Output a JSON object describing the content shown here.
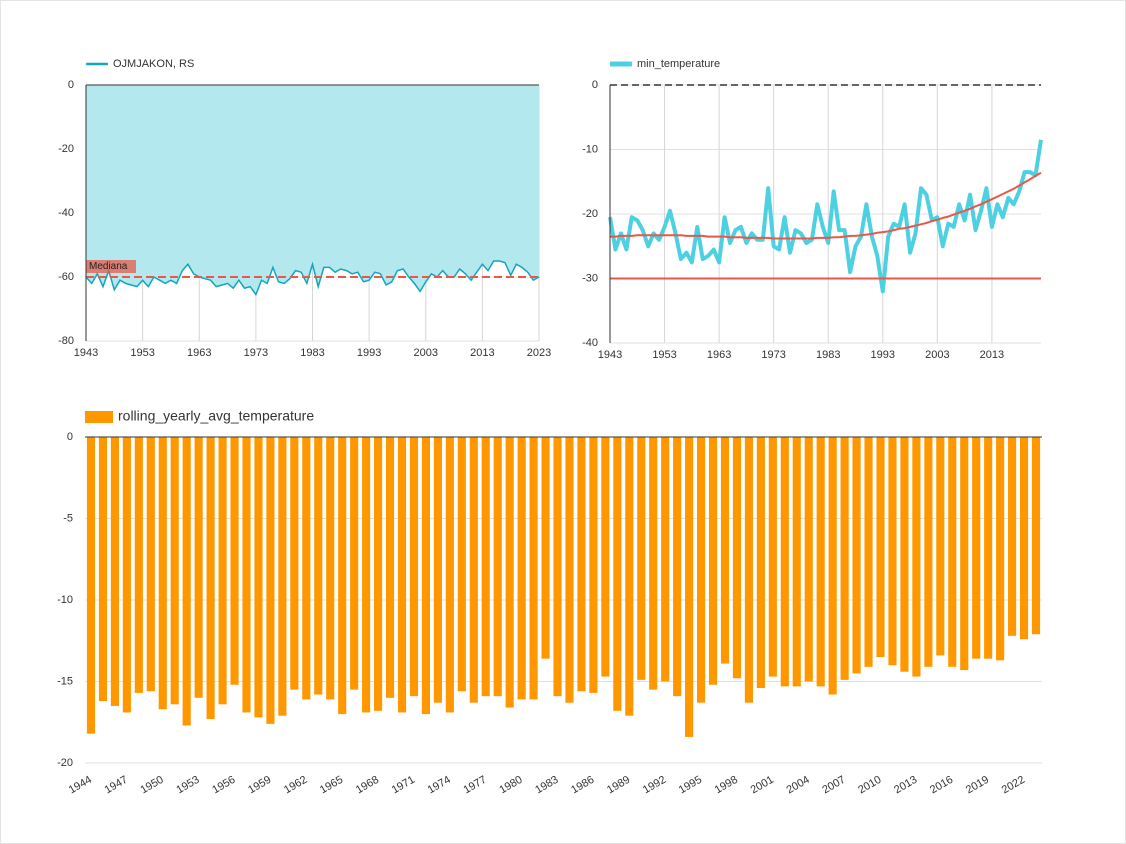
{
  "chart_data": [
    {
      "type": "area",
      "x": [
        1943,
        1944,
        1945,
        1946,
        1947,
        1948,
        1949,
        1950,
        1951,
        1952,
        1953,
        1954,
        1955,
        1956,
        1957,
        1958,
        1959,
        1960,
        1961,
        1962,
        1963,
        1964,
        1965,
        1966,
        1967,
        1968,
        1969,
        1970,
        1971,
        1972,
        1973,
        1974,
        1975,
        1976,
        1977,
        1978,
        1979,
        1980,
        1981,
        1982,
        1983,
        1984,
        1985,
        1986,
        1987,
        1988,
        1989,
        1990,
        1991,
        1992,
        1993,
        1994,
        1995,
        1996,
        1997,
        1998,
        1999,
        2000,
        2001,
        2002,
        2003,
        2004,
        2005,
        2006,
        2007,
        2008,
        2009,
        2010,
        2011,
        2012,
        2013,
        2014,
        2015,
        2016,
        2017,
        2018,
        2019,
        2020,
        2021,
        2022,
        2023
      ],
      "series": [
        {
          "name": "OJMJAKON, RS",
          "color": "#12a5c0",
          "area_color": "#b3e9ee",
          "values": [
            -60,
            -62,
            -59,
            -63,
            -58,
            -64,
            -61,
            -62,
            -62.5,
            -63,
            -61,
            -63,
            -60,
            -61,
            -62,
            -61,
            -62,
            -58,
            -56,
            -59,
            -60,
            -60.5,
            -61,
            -63,
            -62.5,
            -62,
            -63.5,
            -61,
            -63.5,
            -63,
            -65.5,
            -61,
            -62,
            -57,
            -61.5,
            -62,
            -60.5,
            -58,
            -58.5,
            -62,
            -56,
            -63,
            -57,
            -57,
            -58.5,
            -57.5,
            -58,
            -59,
            -58.5,
            -61.5,
            -61,
            -58.5,
            -59,
            -62.5,
            -61.5,
            -58,
            -57.5,
            -60,
            -62,
            -64.5,
            -61.5,
            -59,
            -60,
            -58,
            -60,
            -60,
            -57.5,
            -59,
            -61,
            -58.5,
            -56,
            -58,
            -55,
            -55,
            -55.5,
            -59.5,
            -56,
            -57,
            -58.5,
            -61,
            -60
          ]
        }
      ],
      "reference_lines": [
        {
          "value": -60,
          "label": "Mediana",
          "color": "#e8584a"
        }
      ],
      "xlim": [
        1943,
        2023
      ],
      "xticks": [
        1943,
        1953,
        1963,
        1973,
        1983,
        1993,
        2003,
        2013,
        2023
      ],
      "ylim": [
        -80,
        0
      ],
      "yticks": [
        -80,
        -60,
        -40,
        -20,
        0
      ],
      "grid": true
    },
    {
      "type": "line",
      "x": [
        1943,
        1944,
        1945,
        1946,
        1947,
        1948,
        1949,
        1950,
        1951,
        1952,
        1953,
        1954,
        1955,
        1956,
        1957,
        1958,
        1959,
        1960,
        1961,
        1962,
        1963,
        1964,
        1965,
        1966,
        1967,
        1968,
        1969,
        1970,
        1971,
        1972,
        1973,
        1974,
        1975,
        1976,
        1977,
        1978,
        1979,
        1980,
        1981,
        1982,
        1983,
        1984,
        1985,
        1986,
        1987,
        1988,
        1989,
        1990,
        1991,
        1992,
        1993,
        1994,
        1995,
        1996,
        1997,
        1998,
        1999,
        2000,
        2001,
        2002,
        2003,
        2004,
        2005,
        2006,
        2007,
        2008,
        2009,
        2010,
        2011,
        2012,
        2013,
        2014,
        2015,
        2016,
        2017,
        2018,
        2019,
        2020,
        2021,
        2022
      ],
      "series": [
        {
          "name": "min_temperature",
          "color": "#4dd0e1",
          "values": [
            -20.5,
            -25.5,
            -23,
            -25.5,
            -20.5,
            -21,
            -22.5,
            -25,
            -23,
            -24,
            -22,
            -19.5,
            -23,
            -27,
            -26,
            -27.5,
            -22,
            -27,
            -26.5,
            -25.5,
            -27.5,
            -20.5,
            -24.5,
            -22.5,
            -22,
            -24.5,
            -23,
            -24,
            -24,
            -16,
            -25,
            -25.5,
            -20.5,
            -26,
            -22.5,
            -23,
            -24.5,
            -24,
            -18.5,
            -22,
            -24.5,
            -16.5,
            -22.5,
            -22.5,
            -29,
            -25,
            -23.5,
            -18.5,
            -23.5,
            -26.5,
            -32,
            -23.5,
            -21.5,
            -22,
            -18.5,
            -26,
            -23,
            -16,
            -17,
            -21,
            -20.5,
            -25,
            -21.5,
            -22,
            -18.5,
            -21,
            -17,
            -22.5,
            -19.5,
            -16,
            -22,
            -18.5,
            -20.5,
            -17.5,
            -18.5,
            -16.5,
            -13.5,
            -13.5,
            -14,
            -8.5
          ]
        },
        {
          "color": "#e8584a",
          "values": [
            -23.5,
            -23.5,
            -23.4,
            -23.4,
            -23.4,
            -23.3,
            -23.3,
            -23.3,
            -23.3,
            -23.3,
            -23.3,
            -23.3,
            -23.3,
            -23.3,
            -23.4,
            -23.4,
            -23.4,
            -23.4,
            -23.5,
            -23.5,
            -23.5,
            -23.5,
            -23.6,
            -23.6,
            -23.6,
            -23.7,
            -23.7,
            -23.7,
            -23.7,
            -23.7,
            -23.8,
            -23.8,
            -23.8,
            -23.8,
            -23.8,
            -23.8,
            -23.8,
            -23.8,
            -23.7,
            -23.7,
            -23.7,
            -23.6,
            -23.6,
            -23.5,
            -23.4,
            -23.4,
            -23.3,
            -23.2,
            -23.1,
            -22.9,
            -22.8,
            -22.7,
            -22.5,
            -22.3,
            -22.2,
            -22.0,
            -21.8,
            -21.6,
            -21.4,
            -21.1,
            -20.9,
            -20.6,
            -20.4,
            -20.1,
            -19.8,
            -19.5,
            -19.2,
            -18.8,
            -18.5,
            -18.1,
            -17.7,
            -17.3,
            -16.9,
            -16.5,
            -16.1,
            -15.6,
            -15.1,
            -14.6,
            -14.1,
            -13.6
          ]
        }
      ],
      "reference_lines": [
        {
          "value": -30,
          "color": "#e8584a"
        }
      ],
      "zero_line_style": "dashed",
      "xlim": [
        1943,
        2022
      ],
      "xticks": [
        1943,
        1953,
        1963,
        1973,
        1983,
        1993,
        2003,
        2013
      ],
      "ylim": [
        -40,
        0
      ],
      "yticks": [
        -40,
        -30,
        -20,
        -10,
        0
      ],
      "grid": true
    },
    {
      "type": "bar",
      "categories": [
        "1944",
        null,
        null,
        "1947",
        null,
        null,
        "1950",
        null,
        null,
        "1953",
        null,
        null,
        "1956",
        null,
        null,
        "1959",
        null,
        null,
        "1962",
        null,
        null,
        "1965",
        null,
        null,
        "1968",
        null,
        null,
        "1971",
        null,
        null,
        "1974",
        null,
        null,
        "1977",
        null,
        null,
        "1980",
        null,
        null,
        "1983",
        null,
        null,
        "1986",
        null,
        null,
        "1989",
        null,
        null,
        "1992",
        null,
        null,
        "1995",
        null,
        null,
        "1998",
        null,
        null,
        "2001",
        null,
        null,
        "2004",
        null,
        null,
        "2007",
        null,
        null,
        "2010",
        null,
        null,
        "2013",
        null,
        null,
        "2016",
        null,
        null,
        "2019",
        null,
        null,
        "2022",
        null
      ],
      "series": [
        {
          "name": "rolling_yearly_avg_temperature",
          "color": "#ff9800",
          "values": [
            -18.2,
            -16.2,
            -16.5,
            -16.9,
            -15.7,
            -15.6,
            -16.7,
            -16.4,
            -17.7,
            -16.0,
            -17.3,
            -16.4,
            -15.2,
            -16.9,
            -17.2,
            -17.6,
            -17.1,
            -15.5,
            -16.1,
            -15.8,
            -16.1,
            -17.0,
            -15.5,
            -16.9,
            -16.8,
            -16.0,
            -16.9,
            -15.9,
            -17.0,
            -16.3,
            -16.9,
            -15.6,
            -16.3,
            -15.9,
            -15.9,
            -16.6,
            -16.1,
            -16.1,
            -13.6,
            -15.9,
            -16.3,
            -15.6,
            -15.7,
            -14.7,
            -16.8,
            -17.1,
            -14.9,
            -15.5,
            -15.0,
            -15.9,
            -18.4,
            -16.3,
            -15.2,
            -13.9,
            -14.8,
            -16.3,
            -15.4,
            -14.7,
            -15.3,
            -15.3,
            -15.0,
            -15.3,
            -15.8,
            -14.9,
            -14.5,
            -14.1,
            -13.5,
            -14.0,
            -14.4,
            -14.7,
            -14.1,
            -13.4,
            -14.1,
            -14.3,
            -13.6,
            -13.6,
            -13.7,
            -12.2,
            -12.4,
            -12.1
          ]
        }
      ],
      "ylim": [
        -20,
        0
      ],
      "yticks": [
        -20,
        -15,
        -10,
        -5,
        0
      ],
      "grid": true
    }
  ]
}
